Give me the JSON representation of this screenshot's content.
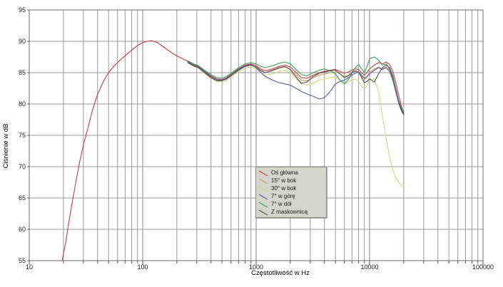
{
  "chart_data": {
    "type": "line",
    "title": "",
    "xlabel": "Częstotliwość w Hz",
    "ylabel": "Ciśnienie w dB",
    "x_scale": "log",
    "xlim": [
      10,
      100000
    ],
    "ylim": [
      55,
      95
    ],
    "y_tick_step": 5,
    "x_ticks_labeled": [
      10,
      100,
      1000,
      10000,
      100000
    ],
    "grid": true,
    "grid_color_minor": "#989898",
    "grid_color_major": "#848484",
    "border_color": "#6f6f6f",
    "background": "#ffffff",
    "legend_position": "center-bottom-of-plot",
    "series": [
      {
        "name": "Oś główna",
        "color": "#c5403f",
        "points": [
          [
            19.5,
            55
          ],
          [
            21,
            58
          ],
          [
            22.5,
            61.5
          ],
          [
            24,
            64.5
          ],
          [
            26,
            68
          ],
          [
            28,
            71
          ],
          [
            30,
            73.5
          ],
          [
            33,
            76.2
          ],
          [
            36,
            79
          ],
          [
            40,
            81.5
          ],
          [
            45,
            83.6
          ],
          [
            50,
            85
          ],
          [
            55,
            85.9
          ],
          [
            60,
            86.6
          ],
          [
            65,
            87.2
          ],
          [
            70,
            87.7
          ],
          [
            80,
            88.6
          ],
          [
            90,
            89.3
          ],
          [
            100,
            89.8
          ],
          [
            110,
            90
          ],
          [
            120,
            90.1
          ],
          [
            135,
            89.8
          ],
          [
            150,
            89.2
          ],
          [
            170,
            88.5
          ],
          [
            190,
            87.9
          ],
          [
            220,
            87.3
          ],
          [
            250,
            86.8
          ],
          [
            280,
            86.3
          ],
          [
            310,
            86
          ],
          [
            350,
            85.3
          ],
          [
            400,
            84.5
          ],
          [
            450,
            84
          ],
          [
            500,
            83.9
          ],
          [
            550,
            84.2
          ],
          [
            600,
            84.7
          ],
          [
            700,
            85.6
          ],
          [
            800,
            86.2
          ],
          [
            900,
            86.4
          ],
          [
            1000,
            86.1
          ],
          [
            1100,
            85.6
          ],
          [
            1200,
            85.3
          ],
          [
            1400,
            85.6
          ],
          [
            1600,
            86
          ],
          [
            1800,
            86.2
          ],
          [
            2000,
            85.9
          ],
          [
            2200,
            85.2
          ],
          [
            2500,
            84.2
          ],
          [
            2800,
            84.1
          ],
          [
            3200,
            84.6
          ],
          [
            3600,
            85
          ],
          [
            4000,
            85.2
          ],
          [
            4500,
            85.4
          ],
          [
            5000,
            85.5
          ],
          [
            5500,
            85.2
          ],
          [
            6000,
            84.9
          ],
          [
            6500,
            85.1
          ],
          [
            7000,
            85.4
          ],
          [
            7500,
            85.6
          ],
          [
            8000,
            85.5
          ],
          [
            8500,
            85
          ],
          [
            9000,
            84.6
          ],
          [
            9500,
            85
          ],
          [
            10000,
            85.6
          ],
          [
            11000,
            86.2
          ],
          [
            12000,
            86.6
          ],
          [
            13000,
            86.4
          ],
          [
            14000,
            86.7
          ],
          [
            15000,
            86.3
          ],
          [
            16000,
            85.2
          ],
          [
            17000,
            83.5
          ],
          [
            18000,
            81.5
          ],
          [
            19000,
            79.8
          ],
          [
            20000,
            78.5
          ]
        ]
      },
      {
        "name": "15° w bok",
        "color": "#bfa066",
        "points": [
          [
            250,
            86.6
          ],
          [
            280,
            86.1
          ],
          [
            310,
            85.8
          ],
          [
            350,
            85.1
          ],
          [
            400,
            84.3
          ],
          [
            450,
            83.8
          ],
          [
            500,
            83.7
          ],
          [
            550,
            84
          ],
          [
            600,
            84.5
          ],
          [
            700,
            85.4
          ],
          [
            800,
            86
          ],
          [
            900,
            86.2
          ],
          [
            1000,
            85.9
          ],
          [
            1100,
            85.4
          ],
          [
            1200,
            85
          ],
          [
            1400,
            85.3
          ],
          [
            1600,
            85.7
          ],
          [
            1800,
            85.9
          ],
          [
            2000,
            85.5
          ],
          [
            2200,
            84.8
          ],
          [
            2500,
            83.8
          ],
          [
            2800,
            83.7
          ],
          [
            3200,
            84.2
          ],
          [
            3600,
            84.6
          ],
          [
            4000,
            84.8
          ],
          [
            4500,
            85
          ],
          [
            5000,
            85.1
          ],
          [
            5500,
            84.8
          ],
          [
            6000,
            84.4
          ],
          [
            6500,
            84.6
          ],
          [
            7000,
            85
          ],
          [
            7500,
            85.2
          ],
          [
            8000,
            85
          ],
          [
            8500,
            84.4
          ],
          [
            9000,
            83.9
          ],
          [
            9500,
            84.3
          ],
          [
            10000,
            85
          ],
          [
            11000,
            85.6
          ],
          [
            12000,
            85.9
          ],
          [
            13000,
            85.6
          ],
          [
            14000,
            85.9
          ],
          [
            15000,
            85.4
          ],
          [
            16000,
            84.2
          ],
          [
            17000,
            82.3
          ],
          [
            18000,
            80.3
          ],
          [
            19000,
            79
          ],
          [
            20000,
            78.2
          ]
        ]
      },
      {
        "name": "30° w bok",
        "color": "#d4da82",
        "points": [
          [
            250,
            86.5
          ],
          [
            280,
            86
          ],
          [
            310,
            85.7
          ],
          [
            350,
            84.9
          ],
          [
            400,
            84.1
          ],
          [
            450,
            83.6
          ],
          [
            500,
            83.5
          ],
          [
            550,
            83.8
          ],
          [
            600,
            84.3
          ],
          [
            700,
            85.1
          ],
          [
            800,
            85.7
          ],
          [
            900,
            85.9
          ],
          [
            1000,
            85.6
          ],
          [
            1100,
            85
          ],
          [
            1200,
            84.6
          ],
          [
            1400,
            84.8
          ],
          [
            1600,
            85.2
          ],
          [
            1800,
            85.4
          ],
          [
            2000,
            85
          ],
          [
            2200,
            84.2
          ],
          [
            2500,
            83.2
          ],
          [
            2800,
            83
          ],
          [
            3200,
            83.4
          ],
          [
            3600,
            83.8
          ],
          [
            4000,
            84
          ],
          [
            4500,
            84.2
          ],
          [
            5000,
            84.3
          ],
          [
            5500,
            83.8
          ],
          [
            6000,
            83.3
          ],
          [
            6500,
            83.5
          ],
          [
            7000,
            83.8
          ],
          [
            7500,
            84
          ],
          [
            8000,
            83.6
          ],
          [
            8500,
            82.8
          ],
          [
            9000,
            82.4
          ],
          [
            9500,
            82.9
          ],
          [
            10000,
            83.8
          ],
          [
            11000,
            84
          ],
          [
            12000,
            82
          ],
          [
            13000,
            78
          ],
          [
            14000,
            74.5
          ],
          [
            15000,
            71.5
          ],
          [
            16000,
            69.5
          ],
          [
            17000,
            68.3
          ],
          [
            18000,
            67.5
          ],
          [
            19000,
            67
          ],
          [
            20000,
            66.8
          ]
        ]
      },
      {
        "name": "7° w górę",
        "color": "#5560a4",
        "points": [
          [
            250,
            86.7
          ],
          [
            280,
            86.2
          ],
          [
            310,
            85.9
          ],
          [
            350,
            85.2
          ],
          [
            400,
            84.4
          ],
          [
            450,
            83.9
          ],
          [
            500,
            83.8
          ],
          [
            550,
            84.1
          ],
          [
            600,
            84.6
          ],
          [
            700,
            85.5
          ],
          [
            800,
            86.1
          ],
          [
            900,
            86.3
          ],
          [
            1000,
            85.8
          ],
          [
            1100,
            85
          ],
          [
            1200,
            84.4
          ],
          [
            1400,
            83.8
          ],
          [
            1600,
            83.4
          ],
          [
            1800,
            83.2
          ],
          [
            2000,
            83
          ],
          [
            2200,
            82.6
          ],
          [
            2500,
            82
          ],
          [
            2800,
            81.6
          ],
          [
            3200,
            81.2
          ],
          [
            3600,
            80.8
          ],
          [
            4000,
            81
          ],
          [
            4500,
            82
          ],
          [
            5000,
            83.2
          ],
          [
            5500,
            83.6
          ],
          [
            6000,
            83.8
          ],
          [
            6500,
            84.2
          ],
          [
            7000,
            84.6
          ],
          [
            7500,
            84.9
          ],
          [
            8000,
            85.1
          ],
          [
            8500,
            84.6
          ],
          [
            9000,
            84.1
          ],
          [
            9500,
            84.4
          ],
          [
            10000,
            84.8
          ],
          [
            11000,
            85.4
          ],
          [
            12000,
            85.8
          ],
          [
            13000,
            85.5
          ],
          [
            14000,
            85.8
          ],
          [
            15000,
            85.2
          ],
          [
            16000,
            83.8
          ],
          [
            17000,
            82
          ],
          [
            18000,
            80.2
          ],
          [
            19000,
            79
          ],
          [
            20000,
            78.3
          ]
        ]
      },
      {
        "name": "7° w dół",
        "color": "#3f9f58",
        "points": [
          [
            250,
            86.9
          ],
          [
            280,
            86.4
          ],
          [
            310,
            86.1
          ],
          [
            350,
            85.4
          ],
          [
            400,
            84.7
          ],
          [
            450,
            84.2
          ],
          [
            500,
            84.1
          ],
          [
            550,
            84.4
          ],
          [
            600,
            84.9
          ],
          [
            700,
            85.8
          ],
          [
            800,
            86.4
          ],
          [
            900,
            86.6
          ],
          [
            1000,
            86.4
          ],
          [
            1100,
            86
          ],
          [
            1200,
            85.8
          ],
          [
            1400,
            86.1
          ],
          [
            1600,
            86.5
          ],
          [
            1800,
            86.7
          ],
          [
            2000,
            86.4
          ],
          [
            2200,
            85.7
          ],
          [
            2500,
            84.7
          ],
          [
            2800,
            84.5
          ],
          [
            3200,
            85
          ],
          [
            3600,
            85.4
          ],
          [
            4000,
            85.6
          ],
          [
            4500,
            85.3
          ],
          [
            5000,
            84.8
          ],
          [
            5500,
            83.8
          ],
          [
            6000,
            83.2
          ],
          [
            6500,
            83.9
          ],
          [
            7000,
            85
          ],
          [
            7500,
            85.8
          ],
          [
            8000,
            86.3
          ],
          [
            8500,
            85.6
          ],
          [
            9000,
            85
          ],
          [
            9500,
            86
          ],
          [
            10000,
            87.2
          ],
          [
            11000,
            87.5
          ],
          [
            12000,
            87
          ],
          [
            13000,
            86.2
          ],
          [
            14000,
            86.4
          ],
          [
            15000,
            85.6
          ],
          [
            16000,
            84.2
          ],
          [
            17000,
            82.4
          ],
          [
            18000,
            80.6
          ],
          [
            19000,
            79.4
          ],
          [
            20000,
            78.8
          ]
        ]
      },
      {
        "name": "Z maskownicą",
        "color": "#53525b",
        "points": [
          [
            250,
            86.6
          ],
          [
            280,
            86.1
          ],
          [
            310,
            85.8
          ],
          [
            350,
            85
          ],
          [
            400,
            84.2
          ],
          [
            450,
            83.7
          ],
          [
            500,
            83.7
          ],
          [
            550,
            84
          ],
          [
            600,
            84.5
          ],
          [
            700,
            85.4
          ],
          [
            800,
            86
          ],
          [
            900,
            86.2
          ],
          [
            1000,
            85.9
          ],
          [
            1100,
            85.3
          ],
          [
            1200,
            85
          ],
          [
            1400,
            85.4
          ],
          [
            1600,
            85.8
          ],
          [
            1800,
            86
          ],
          [
            2000,
            85.5
          ],
          [
            2200,
            84.5
          ],
          [
            2500,
            83.3
          ],
          [
            2800,
            83.5
          ],
          [
            3200,
            84.4
          ],
          [
            3600,
            84.9
          ],
          [
            4000,
            85.1
          ],
          [
            4500,
            85.3
          ],
          [
            5000,
            85.4
          ],
          [
            5500,
            84.8
          ],
          [
            6000,
            84.2
          ],
          [
            6500,
            84.5
          ],
          [
            7000,
            85
          ],
          [
            7500,
            85.3
          ],
          [
            8000,
            85.1
          ],
          [
            8500,
            84.2
          ],
          [
            9000,
            83.4
          ],
          [
            9500,
            83.6
          ],
          [
            10000,
            84
          ],
          [
            11000,
            83.5
          ],
          [
            12000,
            84.8
          ],
          [
            13000,
            85.8
          ],
          [
            14000,
            86.2
          ],
          [
            15000,
            85.8
          ],
          [
            16000,
            84.5
          ],
          [
            17000,
            82.5
          ],
          [
            18000,
            80.5
          ],
          [
            19000,
            79.2
          ],
          [
            20000,
            78.4
          ]
        ]
      }
    ]
  }
}
